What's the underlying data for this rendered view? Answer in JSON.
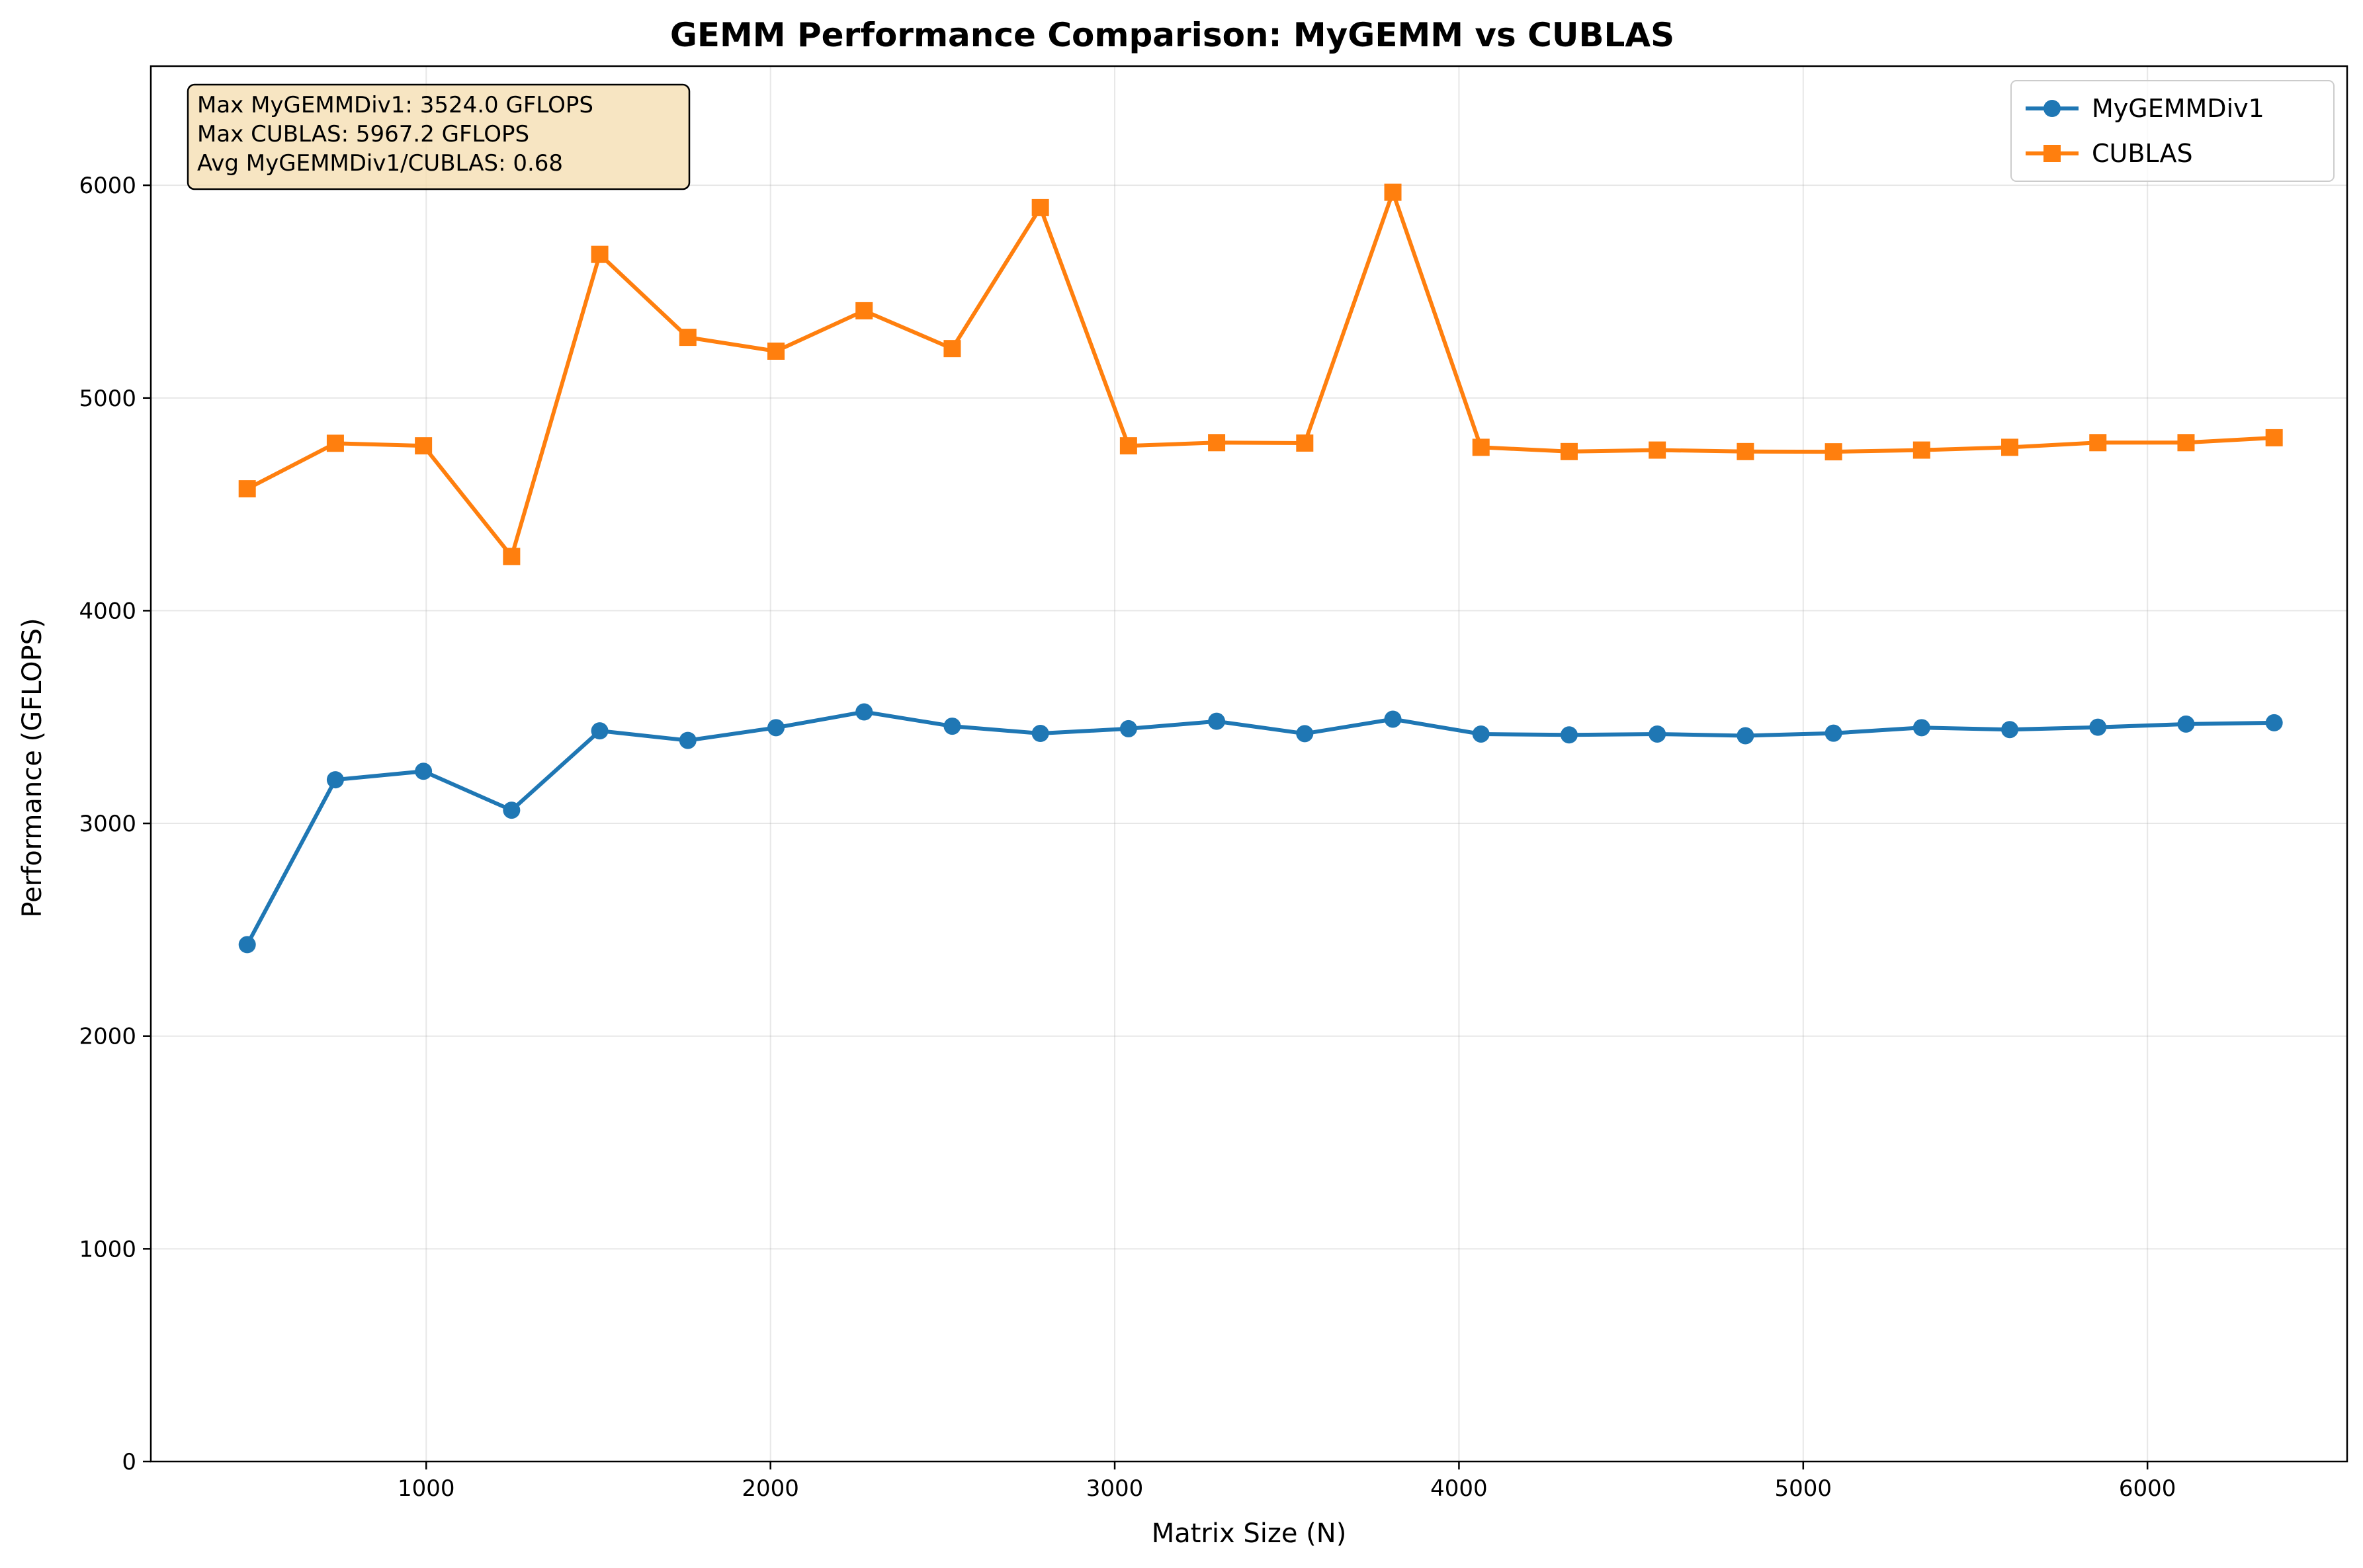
{
  "chart_data": {
    "type": "line",
    "title": "GEMM Performance Comparison: MyGEMM vs CUBLAS",
    "xlabel": "Matrix Size (N)",
    "ylabel": "Performance (GFLOPS)",
    "xlim": [
      200,
      6580
    ],
    "ylim": [
      0,
      6560
    ],
    "x_ticks": [
      1000,
      2000,
      3000,
      4000,
      5000,
      6000
    ],
    "y_ticks": [
      0,
      1000,
      2000,
      3000,
      4000,
      5000,
      6000
    ],
    "grid": true,
    "legend_position": "top-right",
    "x": [
      480,
      736,
      992,
      1248,
      1504,
      1760,
      2016,
      2272,
      2528,
      2784,
      3040,
      3296,
      3552,
      3808,
      4064,
      4320,
      4576,
      4832,
      5088,
      5344,
      5600,
      5856,
      6112,
      6368
    ],
    "series": [
      {
        "name": "MyGEMMDiv1",
        "color": "#1f77b4",
        "marker": "circle",
        "values": [
          2430,
          3205,
          3245,
          3062,
          3435,
          3390,
          3450,
          3524,
          3457,
          3423,
          3445,
          3480,
          3422,
          3490,
          3420,
          3416,
          3420,
          3412,
          3424,
          3450,
          3441,
          3452,
          3467,
          3473
        ]
      },
      {
        "name": "CUBLAS",
        "color": "#ff7f0e",
        "marker": "square",
        "values": [
          4573,
          4787,
          4775,
          4255,
          5675,
          5285,
          5220,
          5410,
          5232,
          5895,
          4775,
          4790,
          4788,
          5967.2,
          4768,
          4748,
          4755,
          4748,
          4747,
          4755,
          4768,
          4790,
          4790,
          4813
        ]
      }
    ],
    "annotation": {
      "lines": [
        "Max MyGEMMDiv1: 3524.0 GFLOPS",
        "Max CUBLAS: 5967.2 GFLOPS",
        "Avg MyGEMMDiv1/CUBLAS: 0.68"
      ],
      "position": "top-left",
      "background": "#f5deb3"
    }
  }
}
